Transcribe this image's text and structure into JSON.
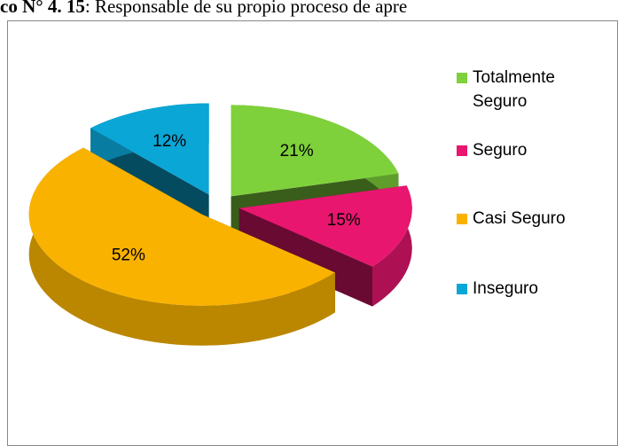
{
  "chart_data": {
    "type": "pie3d",
    "title_label": "co N° 4. 15",
    "title": ": Responsable de su propio proceso de apre",
    "categories": [
      "Totalmente Seguro",
      "Seguro",
      "Casi Seguro",
      "Inseguro"
    ],
    "values": [
      21,
      15,
      52,
      12
    ],
    "value_labels": [
      "21%",
      "15%",
      "52%",
      "12%"
    ],
    "colors": [
      "#7fd13b",
      "#e8166e",
      "#f9b200",
      "#0aa6d6"
    ],
    "legend": "right"
  }
}
